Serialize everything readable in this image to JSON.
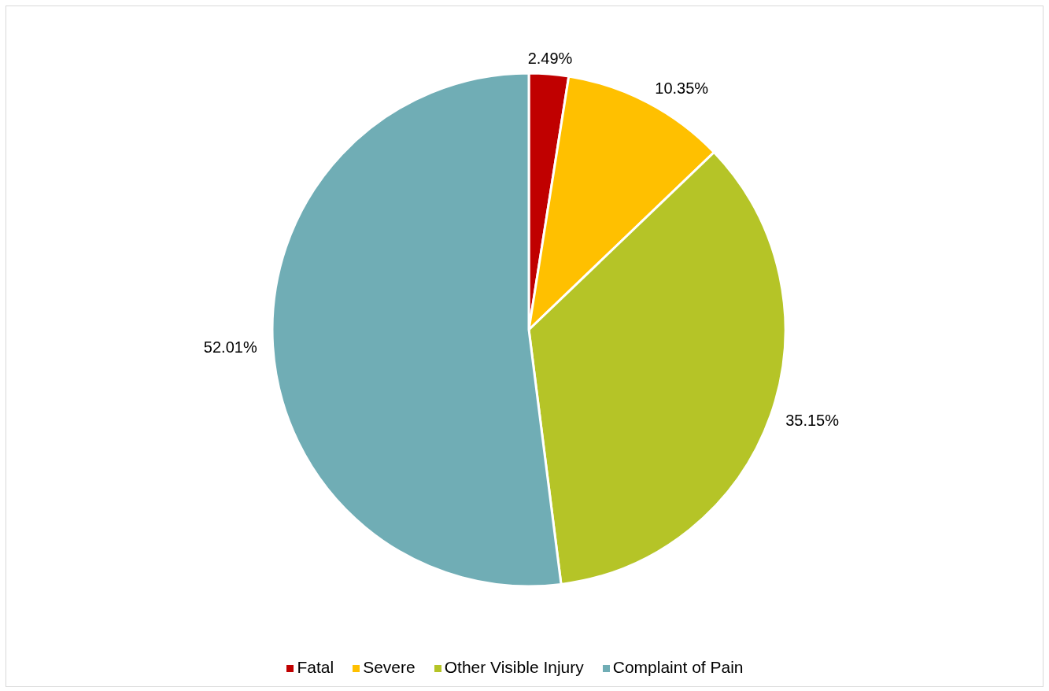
{
  "chart_data": {
    "type": "pie",
    "categories": [
      "Fatal",
      "Severe",
      "Other Visible Injury",
      "Complaint of Pain"
    ],
    "values": [
      2.49,
      10.35,
      35.15,
      52.01
    ],
    "colors": [
      "#c00000",
      "#ffc000",
      "#b5c427",
      "#70adb5"
    ],
    "value_labels": [
      "2.49%",
      "10.35%",
      "35.15%",
      "52.01%"
    ],
    "legend": "bottom"
  }
}
